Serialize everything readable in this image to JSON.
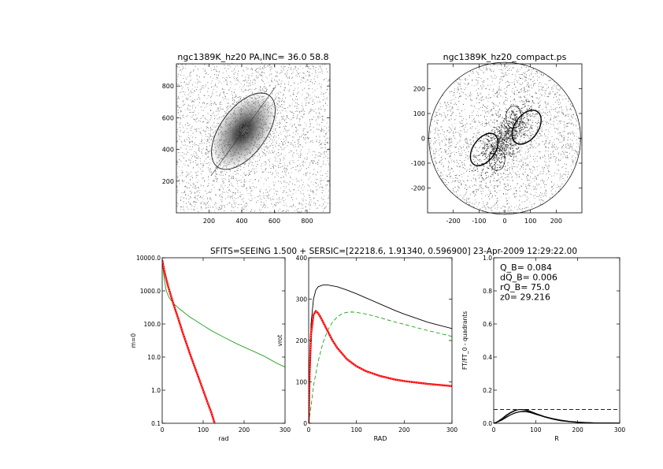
{
  "header": {
    "text": "SFITS=SEEING 1.500 + SERSIC=[22218.6, 1.91340, 0.596900]  23-Apr-2009 12:29:22.00"
  },
  "colors": {
    "red": "#ff0000",
    "green": "#009900",
    "black": "#000000"
  },
  "chart_data": [
    {
      "id": "image-left",
      "type": "heatmap",
      "title": "ngc1389K_hz20 PA,INC= 36.0 58.8",
      "xlim": [
        0,
        940
      ],
      "ylim": [
        0,
        940
      ],
      "xticks": [
        200,
        400,
        600,
        800
      ],
      "yticks": [
        200,
        400,
        600,
        800
      ],
      "center": [
        410,
        515
      ],
      "isophote_ellipse": {
        "semi_major": 270,
        "semi_minor": 145,
        "position_angle_deg": 36.0
      }
    },
    {
      "id": "image-right",
      "type": "heatmap",
      "title": "ngc1389K_hz20_compact.ps",
      "xlim": [
        -300,
        300
      ],
      "ylim": [
        -300,
        300
      ],
      "xticks": [
        -200,
        -100,
        0,
        100,
        200
      ],
      "yticks": [
        -200,
        -100,
        0,
        100,
        200
      ],
      "circle_radius": 295
    },
    {
      "id": "profile",
      "type": "line",
      "xlabel": "rad",
      "ylabel": "m=0",
      "yscale": "log",
      "xlim": [
        0,
        300
      ],
      "ylim": [
        0.1,
        10000
      ],
      "xticks": [
        0,
        100,
        200,
        300
      ],
      "ytick_labels": [
        "0.1",
        "1.0",
        "10.0",
        "100.0",
        "1000.0",
        "10000.0"
      ],
      "series": [
        {
          "color": "#009900",
          "x": [
            0,
            5,
            10,
            15,
            20,
            30,
            40,
            50,
            60,
            70,
            80,
            100,
            120,
            150,
            180,
            200,
            220,
            250,
            280,
            300
          ],
          "y": [
            8000,
            2200,
            1000,
            700,
            550,
            390,
            300,
            240,
            190,
            155,
            130,
            90,
            63,
            40,
            26,
            20,
            15.5,
            10.5,
            6.5,
            5.0
          ]
        },
        {
          "color": "#ff0000",
          "x": [
            0,
            5,
            10,
            15,
            20,
            30,
            40,
            50,
            60,
            70,
            80,
            90,
            100,
            110,
            120,
            128
          ],
          "y": [
            8500,
            4000,
            2200,
            1300,
            800,
            320,
            135,
            55,
            24,
            10.5,
            4.8,
            2.2,
            1.0,
            0.45,
            0.21,
            0.1
          ]
        }
      ]
    },
    {
      "id": "rotation",
      "type": "line",
      "xlabel": "RAD",
      "ylabel": "vrot",
      "xlim": [
        0,
        300
      ],
      "ylim": [
        0,
        400
      ],
      "xticks": [
        0,
        100,
        200,
        300
      ],
      "yticks": [
        0,
        100,
        200,
        300,
        400
      ],
      "series": [
        {
          "color": "#000000",
          "x": [
            0,
            2,
            5,
            10,
            15,
            20,
            30,
            40,
            60,
            80,
            100,
            120,
            150,
            180,
            200,
            250,
            300
          ],
          "y": [
            0,
            120,
            240,
            300,
            322,
            330,
            334,
            334,
            330,
            322,
            313,
            303,
            288,
            273,
            264,
            244,
            229
          ]
        },
        {
          "color": "#009900",
          "dashed": true,
          "x": [
            0,
            5,
            10,
            20,
            30,
            40,
            50,
            60,
            70,
            80,
            90,
            100,
            120,
            150,
            180,
            200,
            250,
            300
          ],
          "y": [
            0,
            40,
            90,
            150,
            195,
            225,
            245,
            257,
            265,
            268,
            269,
            268,
            264,
            255,
            245,
            239,
            224,
            210
          ]
        },
        {
          "color": "#ff0000",
          "x": [
            0,
            2,
            5,
            10,
            15,
            20,
            25,
            30,
            40,
            50,
            60,
            80,
            100,
            120,
            150,
            180,
            200,
            250,
            300
          ],
          "y": [
            0,
            120,
            215,
            262,
            271,
            266,
            256,
            245,
            222,
            200,
            182,
            155,
            138,
            126,
            114,
            106,
            102,
            95,
            90
          ]
        }
      ]
    },
    {
      "id": "fourier",
      "type": "line",
      "xlabel": "R",
      "ylabel": "FT/FT_0 - quadrants",
      "xlim": [
        0,
        300
      ],
      "ylim": [
        0,
        1.0
      ],
      "xticks": [
        0,
        100,
        200,
        300
      ],
      "ytick_labels": [
        "0.0",
        "0.2",
        "0.4",
        "0.6",
        "0.8",
        "1.0"
      ],
      "annotations": [
        "Q_B=  0.084",
        "dQ_B=  0.006",
        "rQ_B=   75.0",
        " z0= 29.216"
      ],
      "series": [
        {
          "color": "#000000",
          "x": [
            0,
            10,
            20,
            30,
            40,
            50,
            60,
            70,
            80,
            90,
            100,
            120,
            140,
            160,
            180,
            200,
            220,
            240,
            260,
            280,
            300
          ],
          "y": [
            0,
            0.01,
            0.025,
            0.045,
            0.062,
            0.075,
            0.083,
            0.084,
            0.08,
            0.07,
            0.06,
            0.042,
            0.028,
            0.018,
            0.01,
            0.006,
            0.004,
            0.003,
            0.002,
            0.002,
            0.001
          ]
        },
        {
          "color": "#000000",
          "x": [
            0,
            10,
            20,
            30,
            40,
            50,
            60,
            70,
            80,
            90,
            100,
            120,
            140,
            160,
            180,
            200,
            220,
            240,
            260,
            280,
            300
          ],
          "y": [
            0,
            0.012,
            0.03,
            0.05,
            0.066,
            0.078,
            0.083,
            0.082,
            0.076,
            0.066,
            0.055,
            0.038,
            0.025,
            0.015,
            0.009,
            0.005,
            0.003,
            0.002,
            0.002,
            0.001,
            0.001
          ]
        },
        {
          "color": "#000000",
          "x": [
            0,
            10,
            20,
            30,
            40,
            50,
            60,
            70,
            80,
            90,
            100,
            120,
            140,
            160,
            180,
            200,
            220,
            240,
            260,
            280,
            300
          ],
          "y": [
            0,
            0.008,
            0.02,
            0.035,
            0.05,
            0.061,
            0.068,
            0.07,
            0.068,
            0.062,
            0.054,
            0.04,
            0.028,
            0.018,
            0.011,
            0.007,
            0.004,
            0.003,
            0.002,
            0.001,
            0.001
          ]
        },
        {
          "color": "#000000",
          "x": [
            0,
            10,
            20,
            30,
            40,
            50,
            60,
            70,
            80,
            90,
            100,
            120,
            140,
            160,
            180,
            200,
            220,
            240,
            260,
            280,
            300
          ],
          "y": [
            0,
            0.009,
            0.022,
            0.038,
            0.052,
            0.063,
            0.07,
            0.073,
            0.071,
            0.065,
            0.057,
            0.041,
            0.029,
            0.019,
            0.012,
            0.007,
            0.005,
            0.003,
            0.002,
            0.002,
            0.001
          ]
        },
        {
          "color": "#000000",
          "dashed": true,
          "x": [
            0,
            30,
            60,
            90,
            120,
            150,
            180,
            210,
            240,
            270,
            300
          ],
          "y": [
            0.084,
            0.084,
            0.084,
            0.084,
            0.084,
            0.084,
            0.084,
            0.084,
            0.084,
            0.084,
            0.084
          ]
        }
      ]
    }
  ]
}
